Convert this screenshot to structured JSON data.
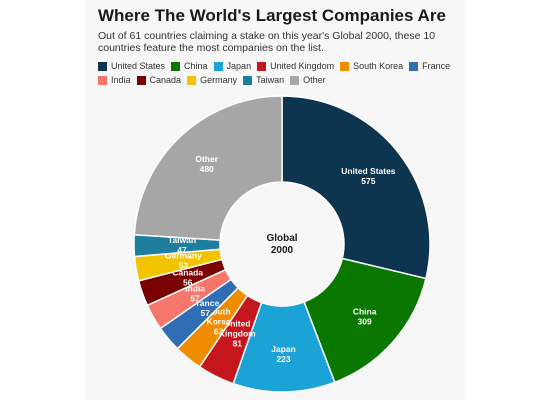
{
  "title": "Where The World's Largest Companies Are",
  "subtitle": "Out of 61 countries claiming a stake on this year's Global 2000, these 10 countries feature the most companies on the list.",
  "chart_data": {
    "type": "pie",
    "center_label": [
      "Global",
      "2000"
    ],
    "legend_placement": "top",
    "categories": [
      "United States",
      "China",
      "Japan",
      "United Kingdom",
      "South Korea",
      "France",
      "India",
      "Canada",
      "Germany",
      "Taiwan",
      "Other"
    ],
    "values": [
      575,
      309,
      223,
      81,
      62,
      57,
      57,
      56,
      53,
      47,
      480
    ],
    "colors": [
      "#0e3550",
      "#0a7700",
      "#1aa3d4",
      "#c4161c",
      "#f08c00",
      "#2f6db5",
      "#f7766b",
      "#7a0000",
      "#f2c300",
      "#1d7e9e",
      "#a6a6a6"
    ],
    "slice_labels": [
      [
        "United States",
        "575"
      ],
      [
        "China",
        "309"
      ],
      [
        "Japan",
        "223"
      ],
      [
        "United",
        "Kingdom",
        "81"
      ],
      [
        "South",
        "Korea",
        "62"
      ],
      [
        "France",
        "57"
      ],
      [
        "India",
        "57"
      ],
      [
        "Canada",
        "56"
      ],
      [
        "Germany",
        "53"
      ],
      [
        "Taiwan",
        "47"
      ],
      [
        "Other",
        "480"
      ]
    ]
  }
}
